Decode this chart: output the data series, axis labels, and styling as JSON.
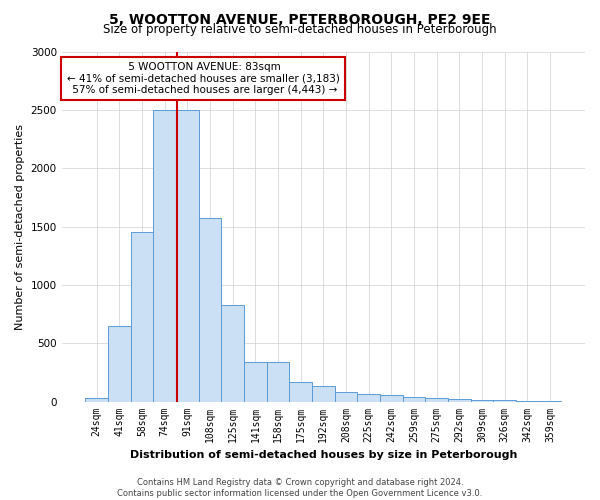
{
  "title": "5, WOOTTON AVENUE, PETERBOROUGH, PE2 9EE",
  "subtitle": "Size of property relative to semi-detached houses in Peterborough",
  "xlabel": "Distribution of semi-detached houses by size in Peterborough",
  "ylabel": "Number of semi-detached properties",
  "footer_line1": "Contains HM Land Registry data © Crown copyright and database right 2024.",
  "footer_line2": "Contains public sector information licensed under the Open Government Licence v3.0.",
  "bar_labels": [
    "24sqm",
    "41sqm",
    "58sqm",
    "74sqm",
    "91sqm",
    "108sqm",
    "125sqm",
    "141sqm",
    "158sqm",
    "175sqm",
    "192sqm",
    "208sqm",
    "225sqm",
    "242sqm",
    "259sqm",
    "275sqm",
    "292sqm",
    "309sqm",
    "326sqm",
    "342sqm",
    "359sqm"
  ],
  "bar_values": [
    30,
    650,
    1450,
    2500,
    2500,
    1575,
    825,
    340,
    340,
    165,
    130,
    80,
    65,
    55,
    40,
    30,
    25,
    15,
    12,
    8,
    8
  ],
  "bar_color": "#cce0f5",
  "bar_edge_color": "#5b9bd5",
  "property_label": "5 WOOTTON AVENUE: 83sqm",
  "pct_smaller": 41,
  "num_smaller": 3183,
  "pct_larger": 57,
  "num_larger": 4443,
  "vline_color": "#cc0000",
  "annotation_box_color": "#ffffff",
  "annotation_box_edge": "#cc0000",
  "ylim": [
    0,
    3000
  ],
  "yticks": [
    0,
    500,
    1000,
    1500,
    2000,
    2500,
    3000
  ],
  "title_fontsize": 10,
  "subtitle_fontsize": 8.5,
  "ylabel_fontsize": 8,
  "xlabel_fontsize": 8,
  "tick_fontsize": 7,
  "annotation_fontsize": 7.5,
  "footer_fontsize": 6,
  "vline_x_index": 3.53
}
